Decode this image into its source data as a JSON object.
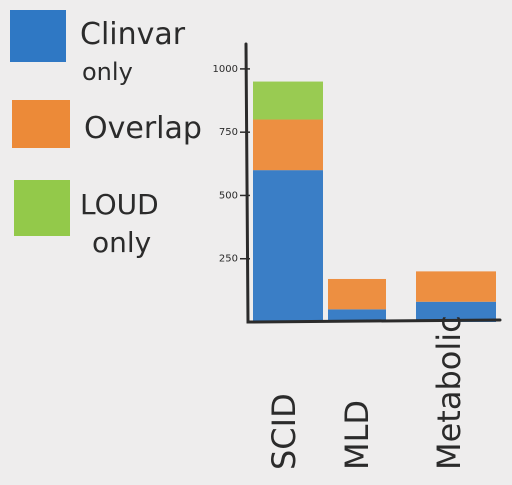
{
  "colors": {
    "paper": "#eeeded",
    "ink": "#2b2b2b",
    "clinvar_only": "#2f78c4",
    "overlap": "#ec8a38",
    "loud_only": "#93c94a"
  },
  "legend": [
    {
      "label_lines": [
        "Clinvar",
        "only"
      ],
      "color_key": "clinvar_only"
    },
    {
      "label_lines": [
        "Overlap"
      ],
      "color_key": "overlap"
    },
    {
      "label_lines": [
        "LOUD",
        "only"
      ],
      "color_key": "loud_only"
    }
  ],
  "chart_data": {
    "type": "bar",
    "stacked": true,
    "categories": [
      "SCID",
      "MLD",
      "Metabolic"
    ],
    "series": [
      {
        "name": "Clinvar only",
        "color_key": "clinvar_only",
        "values": [
          600,
          50,
          80
        ]
      },
      {
        "name": "Overlap",
        "color_key": "overlap",
        "values": [
          200,
          120,
          120
        ]
      },
      {
        "name": "LOUD only",
        "color_key": "loud_only",
        "values": [
          150,
          0,
          0
        ]
      }
    ],
    "yticks": [
      250,
      500,
      750,
      1000
    ],
    "ylim": [
      0,
      1130
    ],
    "title": "",
    "xlabel": "",
    "ylabel": "",
    "legend_position": "left"
  }
}
